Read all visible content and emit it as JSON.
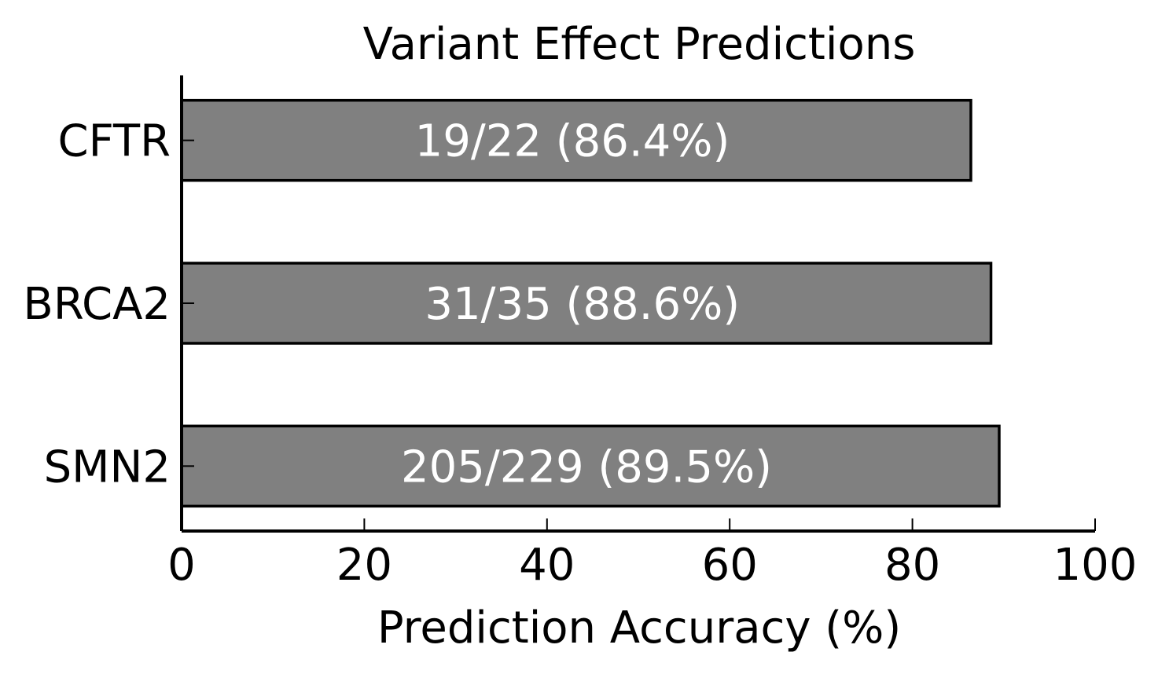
{
  "chart_data": {
    "type": "bar",
    "orientation": "horizontal",
    "title": "Variant Effect Predictions",
    "xlabel": "Prediction Accuracy (%)",
    "ylabel": "",
    "xlim": [
      0,
      100
    ],
    "xticks": [
      0,
      20,
      40,
      60,
      80,
      100
    ],
    "categories": [
      "CFTR",
      "BRCA2",
      "SMN2"
    ],
    "values": [
      86.4,
      88.6,
      89.5
    ],
    "data_labels": [
      "19/22 (86.4%)",
      "31/35 (88.6%)",
      "205/229 (89.5%)"
    ],
    "bar_color": "#808080",
    "bar_edge_color": "#000000",
    "label_color": "#ffffff",
    "grid": false,
    "legend": "none"
  }
}
